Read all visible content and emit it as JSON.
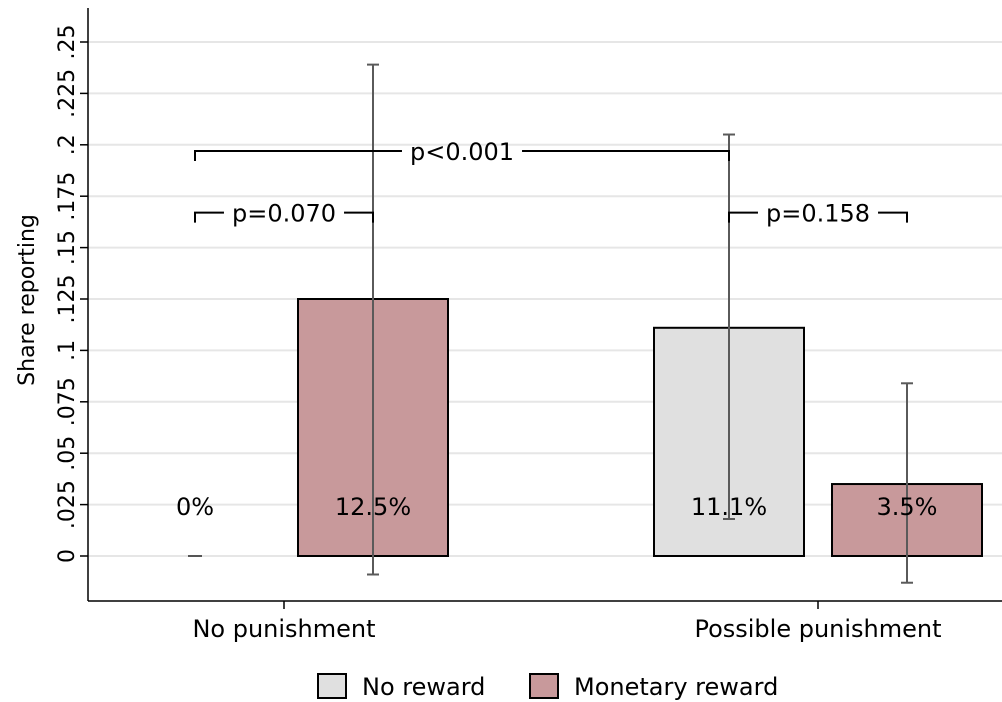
{
  "chart_data": {
    "type": "bar",
    "categories": [
      "No punishment",
      "Possible punishment"
    ],
    "series": [
      {
        "name": "No reward",
        "color": "#e0e0e0",
        "values": [
          0,
          0.111
        ],
        "ci_low": [
          0,
          0.018
        ],
        "ci_high": [
          0,
          0.205
        ],
        "labels": [
          "0%",
          "11.1%"
        ]
      },
      {
        "name": "Monetary reward",
        "color": "#c8999b",
        "values": [
          0.125,
          0.035
        ],
        "ci_low": [
          -0.009,
          -0.013
        ],
        "ci_high": [
          0.239,
          0.084
        ],
        "labels": [
          "12.5%",
          "3.5%"
        ]
      }
    ],
    "ylabel": "Share reporting",
    "ylim": [
      -0.022,
      0.26
    ],
    "yticks": [
      0,
      0.025,
      0.05,
      0.075,
      0.1,
      0.125,
      0.15,
      0.175,
      0.2,
      0.225,
      0.25
    ],
    "ytick_labels": [
      "0",
      ".025",
      ".05",
      ".075",
      ".1",
      ".125",
      ".15",
      ".175",
      ".2",
      ".225",
      ".25"
    ],
    "grid": true,
    "legend_position": "bottom",
    "annotations": [
      {
        "text": "p<0.001",
        "between": [
          [
            0,
            0
          ],
          [
            1,
            0
          ]
        ],
        "level": 0.197
      },
      {
        "text": "p=0.070",
        "between": [
          [
            0,
            0
          ],
          [
            0,
            1
          ]
        ],
        "level": 0.167
      },
      {
        "text": "p=0.158",
        "between": [
          [
            1,
            0
          ],
          [
            1,
            1
          ]
        ],
        "level": 0.167
      }
    ]
  }
}
